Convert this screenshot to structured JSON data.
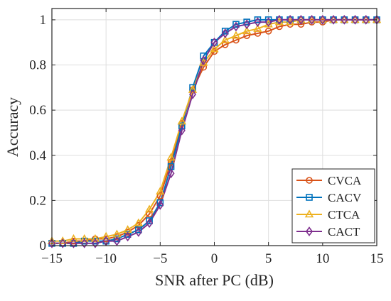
{
  "chart_data": {
    "type": "line",
    "title": "",
    "xlabel": "SNR after PC (dB)",
    "ylabel": "Accuracy",
    "xlim": [
      -15,
      15
    ],
    "ylim": [
      0,
      1.05
    ],
    "xticks": [
      -15,
      -10,
      -5,
      0,
      5,
      10,
      15
    ],
    "xtick_labels": [
      "−15",
      "−10",
      "−5",
      "0",
      "5",
      "10",
      "15"
    ],
    "yticks": [
      0,
      0.2,
      0.4,
      0.6,
      0.8,
      1
    ],
    "ytick_labels": [
      "0",
      "0.2",
      "0.4",
      "0.6",
      "0.8",
      "1"
    ],
    "grid": true,
    "legend_position": "bottom-right",
    "x": [
      -15,
      -14,
      -13,
      -12,
      -11,
      -10,
      -9,
      -8,
      -7,
      -6,
      -5,
      -4,
      -3,
      -2,
      -1,
      0,
      1,
      2,
      3,
      4,
      5,
      6,
      7,
      8,
      9,
      10,
      11,
      12,
      13,
      14,
      15
    ],
    "series": [
      {
        "name": "CVCA",
        "color": "#d95319",
        "marker": "circle",
        "values": [
          0.01,
          0.01,
          0.02,
          0.02,
          0.03,
          0.03,
          0.04,
          0.06,
          0.09,
          0.14,
          0.22,
          0.37,
          0.54,
          0.69,
          0.79,
          0.86,
          0.89,
          0.91,
          0.93,
          0.94,
          0.95,
          0.97,
          0.98,
          0.98,
          0.99,
          0.99,
          1.0,
          1.0,
          1.0,
          1.0,
          1.0
        ]
      },
      {
        "name": "CACV",
        "color": "#0072bd",
        "marker": "square",
        "values": [
          0.01,
          0.01,
          0.01,
          0.02,
          0.02,
          0.02,
          0.03,
          0.05,
          0.07,
          0.11,
          0.19,
          0.35,
          0.53,
          0.7,
          0.84,
          0.9,
          0.95,
          0.98,
          0.99,
          1.0,
          1.0,
          1.0,
          1.0,
          1.0,
          1.0,
          1.0,
          1.0,
          1.0,
          1.0,
          1.0,
          1.0
        ]
      },
      {
        "name": "CTCA",
        "color": "#edb120",
        "marker": "triangle",
        "values": [
          0.02,
          0.02,
          0.03,
          0.03,
          0.03,
          0.04,
          0.05,
          0.07,
          0.1,
          0.16,
          0.24,
          0.39,
          0.55,
          0.69,
          0.81,
          0.87,
          0.91,
          0.93,
          0.95,
          0.96,
          0.98,
          0.99,
          0.99,
          1.0,
          1.0,
          1.0,
          1.0,
          1.0,
          1.0,
          1.0,
          1.0
        ]
      },
      {
        "name": "CACT",
        "color": "#7e2f8e",
        "marker": "diamond",
        "values": [
          0.01,
          0.01,
          0.01,
          0.01,
          0.01,
          0.02,
          0.02,
          0.04,
          0.06,
          0.1,
          0.18,
          0.32,
          0.51,
          0.67,
          0.82,
          0.9,
          0.94,
          0.97,
          0.98,
          0.99,
          0.99,
          1.0,
          1.0,
          1.0,
          1.0,
          1.0,
          1.0,
          1.0,
          1.0,
          1.0,
          1.0
        ]
      }
    ]
  }
}
